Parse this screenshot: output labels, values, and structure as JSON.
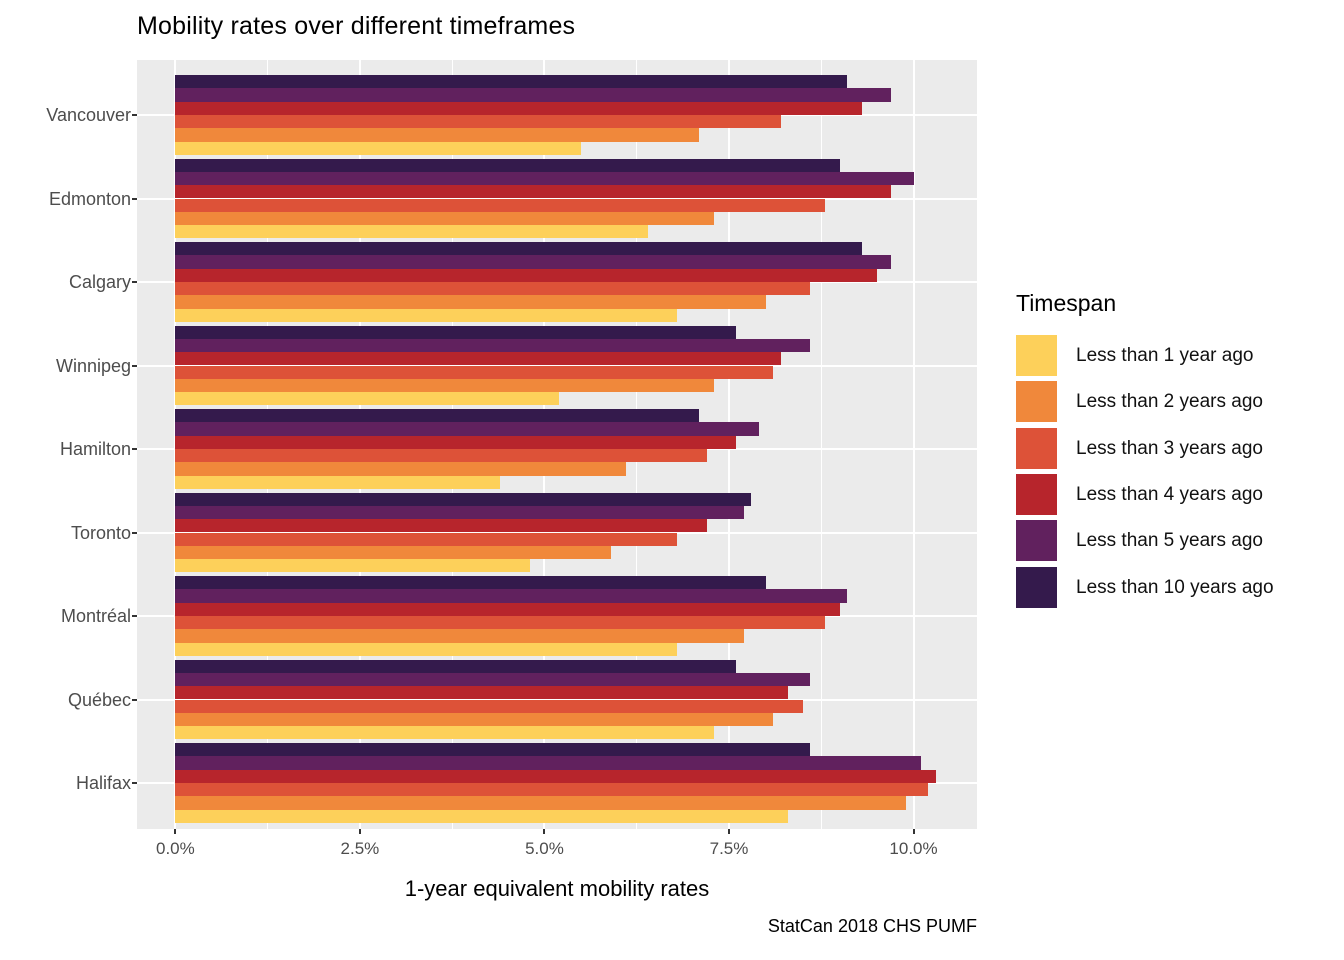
{
  "title": "Mobility rates over different timeframes",
  "chart_data": {
    "type": "bar",
    "orientation": "horizontal",
    "title": "Mobility rates over different timeframes",
    "xlabel": "1-year equivalent mobility rates",
    "caption": "StatCan 2018 CHS PUMF",
    "legend_title": "Timespan",
    "legend_position": "right",
    "grid": "white gridlines on gray panel",
    "x_limits": [
      -0.52,
      10.86
    ],
    "x_ticks": [
      {
        "value": 0,
        "label": "0.0%"
      },
      {
        "value": 2.5,
        "label": "2.5%"
      },
      {
        "value": 5,
        "label": "5.0%"
      },
      {
        "value": 7.5,
        "label": "7.5%"
      },
      {
        "value": 10,
        "label": "10.0%"
      }
    ],
    "x_minor_ticks": [
      1.25,
      3.75,
      6.25,
      8.75
    ],
    "categories": [
      "Vancouver",
      "Edmonton",
      "Calgary",
      "Winnipeg",
      "Hamilton",
      "Toronto",
      "Montréal",
      "Québec",
      "Halifax"
    ],
    "series": [
      {
        "name": "Less than 1 year ago",
        "color": "#FDD05A",
        "values": [
          5.5,
          6.4,
          6.8,
          5.2,
          4.4,
          4.8,
          6.8,
          7.3,
          8.3
        ]
      },
      {
        "name": "Less than 2 years ago",
        "color": "#F0883B",
        "values": [
          7.1,
          7.3,
          8.0,
          7.3,
          6.1,
          5.9,
          7.7,
          8.1,
          9.9
        ]
      },
      {
        "name": "Less than 3 years ago",
        "color": "#DD5238",
        "values": [
          8.2,
          8.8,
          8.6,
          8.1,
          7.2,
          6.8,
          8.8,
          8.5,
          10.2
        ]
      },
      {
        "name": "Less than 4 years ago",
        "color": "#B7252C",
        "values": [
          9.3,
          9.7,
          9.5,
          8.2,
          7.6,
          7.2,
          9.0,
          8.3,
          10.3
        ]
      },
      {
        "name": "Less than 5 years ago",
        "color": "#61215E",
        "values": [
          9.7,
          10.0,
          9.7,
          8.6,
          7.9,
          7.7,
          9.1,
          8.6,
          10.1
        ]
      },
      {
        "name": "Less than 10 years ago",
        "color": "#341A4C",
        "values": [
          9.1,
          9.0,
          9.3,
          7.6,
          7.1,
          7.8,
          8.0,
          7.6,
          8.6
        ]
      }
    ],
    "bar_stack_order_top_to_bottom": [
      "Less than 10 years ago",
      "Less than 5 years ago",
      "Less than 4 years ago",
      "Less than 3 years ago",
      "Less than 2 years ago",
      "Less than 1 year ago"
    ]
  },
  "colors": {
    "panel_background": "#EBEBEB",
    "gridline": "#FFFFFF",
    "axis_text": "#4D4D4D",
    "tick_mark": "#333333",
    "title_text": "#000000"
  }
}
